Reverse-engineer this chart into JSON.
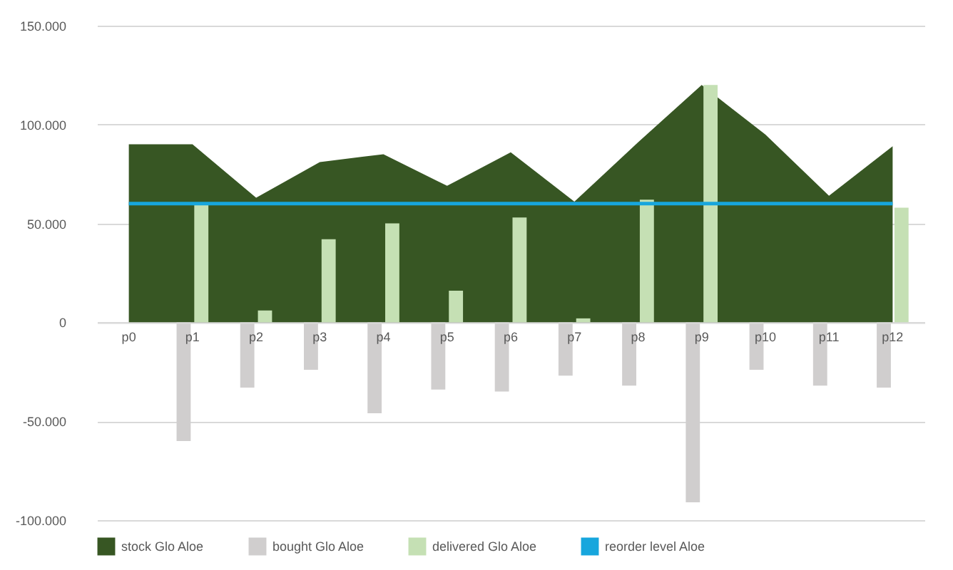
{
  "chart_data": {
    "type": "bar",
    "categories": [
      "p0",
      "p1",
      "p2",
      "p3",
      "p4",
      "p5",
      "p6",
      "p7",
      "p8",
      "p9",
      "p10",
      "p11",
      "p12"
    ],
    "series": [
      {
        "name": "stock Glo Aloe",
        "type": "area",
        "color": "#375623",
        "values": [
          90000,
          90000,
          63000,
          81000,
          85000,
          69000,
          86000,
          61000,
          91000,
          120000,
          95000,
          64000,
          89000
        ]
      },
      {
        "name": "bought Glo Aloe",
        "color": "#d0cece",
        "values": [
          0,
          -60000,
          -33000,
          -24000,
          -46000,
          -34000,
          -35000,
          -27000,
          -32000,
          -91000,
          -24000,
          -32000,
          -33000
        ]
      },
      {
        "name": "delivered Glo Aloe",
        "color": "#c5e0b4",
        "values": [
          0,
          60000,
          6000,
          42000,
          50000,
          16000,
          53000,
          2000,
          62000,
          120000,
          0,
          0,
          58000
        ]
      },
      {
        "name": "reorder level Aloe",
        "type": "line",
        "color": "#17a6dd",
        "values": [
          60000,
          60000,
          60000,
          60000,
          60000,
          60000,
          60000,
          60000,
          60000,
          60000,
          60000,
          60000,
          60000
        ]
      }
    ],
    "ylim": [
      -100000,
      150000
    ],
    "yticks": [
      {
        "value": -100000,
        "label": "-100.000"
      },
      {
        "value": -50000,
        "label": "-50.000"
      },
      {
        "value": 0,
        "label": "0"
      },
      {
        "value": 50000,
        "label": "50.000"
      },
      {
        "value": 100000,
        "label": "100.000"
      },
      {
        "value": 150000,
        "label": "150.000"
      }
    ],
    "grid": "y",
    "legend": "bottom"
  }
}
